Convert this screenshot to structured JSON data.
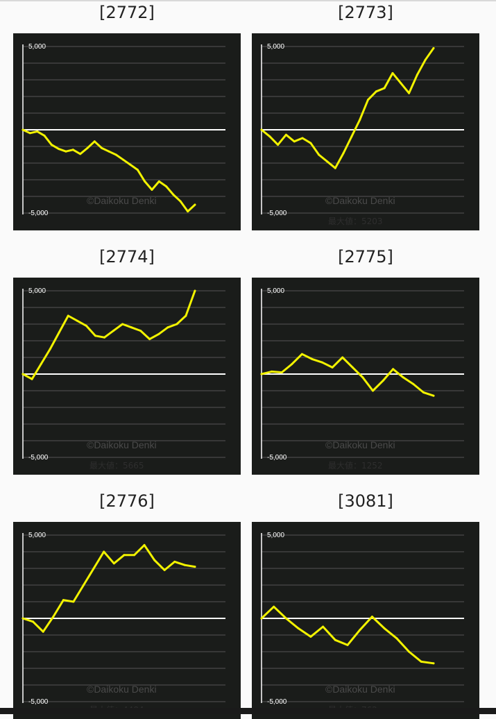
{
  "watermark": "©Daikoku Denki",
  "colors": {
    "background": "#fafafa",
    "chart_bg": "#1a1c1a",
    "line": "#f2f200",
    "zero_line": "#ffffff",
    "grid": "#555555"
  },
  "chart_data": [
    {
      "type": "line",
      "title": "[2772]",
      "ylim": [
        -5000,
        5000
      ],
      "ytick_labels": [
        "5,000",
        "-5,000"
      ],
      "max_label": "",
      "values": [
        0,
        -200,
        -100,
        -350,
        -900,
        -1150,
        -1300,
        -1200,
        -1450,
        -1100,
        -700,
        -1100,
        -1300,
        -1500,
        -1800,
        -2100,
        -2400,
        -3100,
        -3600,
        -3100,
        -3400,
        -3900,
        -4300,
        -4900,
        -4500
      ]
    },
    {
      "type": "line",
      "title": "[2773]",
      "ylim": [
        -5000,
        5000
      ],
      "ytick_labels": [
        "5,000",
        "-5,000"
      ],
      "max_label": "最大値：5203",
      "values": [
        0,
        -400,
        -900,
        -300,
        -700,
        -500,
        -800,
        -1500,
        -1900,
        -2300,
        -1400,
        -400,
        600,
        1800,
        2300,
        2500,
        3400,
        2800,
        2200,
        3300,
        4200,
        4900
      ]
    },
    {
      "type": "line",
      "title": "[2774]",
      "ylim": [
        -5000,
        5000
      ],
      "ytick_labels": [
        "5,000",
        "-5,000"
      ],
      "max_label": "最大値：5665",
      "values": [
        0,
        -300,
        600,
        1500,
        2500,
        3500,
        3200,
        2900,
        2300,
        2200,
        2600,
        3000,
        2800,
        2600,
        2100,
        2400,
        2800,
        3000,
        3500,
        5000
      ]
    },
    {
      "type": "line",
      "title": "[2775]",
      "ylim": [
        -5000,
        5000
      ],
      "ytick_labels": [
        "5,000",
        "-5,000"
      ],
      "max_label": "最大値：1252",
      "values": [
        0,
        150,
        100,
        600,
        1200,
        900,
        700,
        400,
        1000,
        400,
        -200,
        -1000,
        -400,
        300,
        -200,
        -600,
        -1100,
        -1300
      ]
    },
    {
      "type": "line",
      "title": "[2776]",
      "ylim": [
        -5000,
        5000
      ],
      "ytick_labels": [
        "5,000",
        "-5,000"
      ],
      "max_label": "最大値：4484",
      "values": [
        0,
        -200,
        -800,
        100,
        1100,
        1000,
        2000,
        3000,
        4000,
        3300,
        3800,
        3800,
        4400,
        3500,
        2900,
        3400,
        3200,
        3100
      ]
    },
    {
      "type": "line",
      "title": "[3081]",
      "ylim": [
        -5000,
        5000
      ],
      "ytick_labels": [
        "5,000",
        "-5,000"
      ],
      "max_label": "最大値：762",
      "values": [
        0,
        700,
        0,
        -600,
        -1100,
        -500,
        -1300,
        -1600,
        -700,
        100,
        -600,
        -1200,
        -2000,
        -2600,
        -2700
      ]
    }
  ]
}
